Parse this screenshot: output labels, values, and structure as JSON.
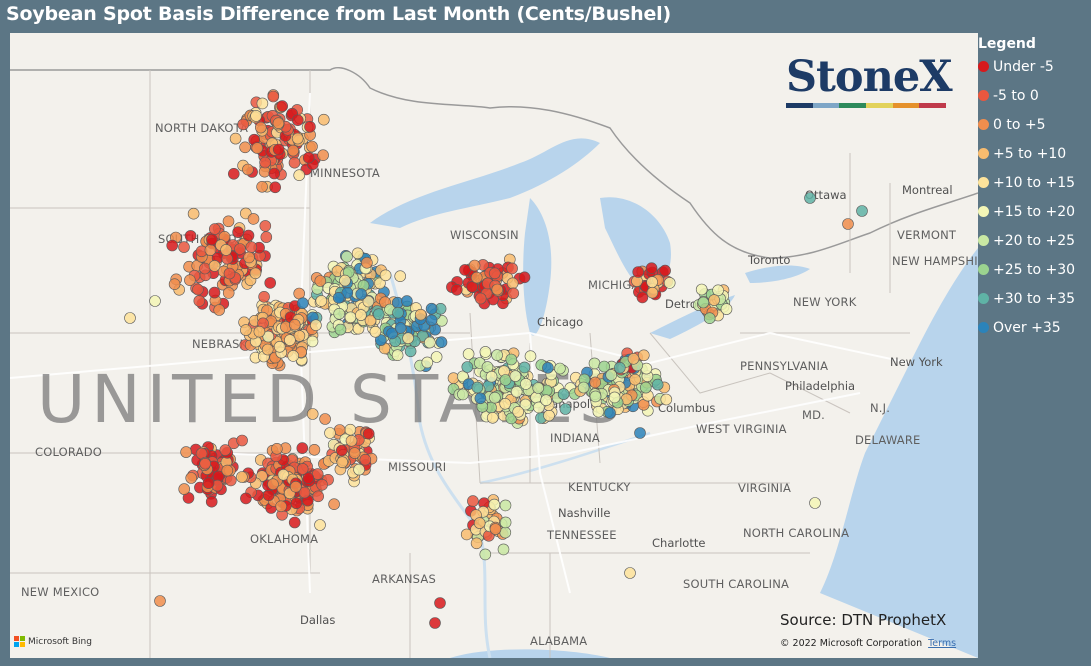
{
  "title": "Soybean Spot Basis Difference from Last Month (Cents/Bushel)",
  "legend": {
    "title": "Legend",
    "items": [
      {
        "label": "Under -5",
        "color": "#d7191c"
      },
      {
        "label": "-5 to 0",
        "color": "#e9573f"
      },
      {
        "label": "0 to +5",
        "color": "#f08e4e"
      },
      {
        "label": "+5 to +10",
        "color": "#f8bc6f"
      },
      {
        "label": "+10 to +15",
        "color": "#fde39b"
      },
      {
        "label": "+15 to +20",
        "color": "#f3f6b6"
      },
      {
        "label": "+20 to +25",
        "color": "#c9e8a3"
      },
      {
        "label": "+25 to +30",
        "color": "#9bd38f"
      },
      {
        "label": "+30 to +35",
        "color": "#5fb3a6"
      },
      {
        "label": "Over +35",
        "color": "#2b83ba"
      }
    ]
  },
  "logo": {
    "text": "StoneX",
    "bar_colors": [
      "#1d3b66",
      "#7ea6c7",
      "#2d8a5b",
      "#e2d25a",
      "#e5912b",
      "#c03a4b"
    ]
  },
  "source": "Source: DTN ProphetX",
  "copyright": "© 2022 Microsoft Corporation",
  "terms": "Terms",
  "bing": "Microsoft Bing",
  "map_labels": {
    "country": "UNITED STATES",
    "states": [
      "NORTH DAKOTA",
      "MINNESOTA",
      "SOUTH DAKOTA",
      "WISCONSIN",
      "NEBRASKA",
      "MICHIGAN",
      "INDIANA",
      "COLORADO",
      "MISSOURI",
      "KENTUCKY",
      "WEST VIRGINIA",
      "VIRGINIA",
      "TENNESSEE",
      "NORTH CAROLINA",
      "ARKANSAS",
      "SOUTH CAROLINA",
      "NEW MEXICO",
      "OKLAHOMA",
      "ALABAMA",
      "PENNSYLVANIA",
      "NEW YORK",
      "VERMONT",
      "NEW HAMPSHIRE",
      "MD.",
      "N.J.",
      "DELAWARE"
    ],
    "cities": [
      "Ottawa",
      "Montreal",
      "Toronto",
      "Chicago",
      "Detroit",
      "Columbus",
      "Philadelphia",
      "New York",
      "Nashville",
      "Charlotte",
      "Dallas",
      "Indianapolis"
    ]
  }
}
